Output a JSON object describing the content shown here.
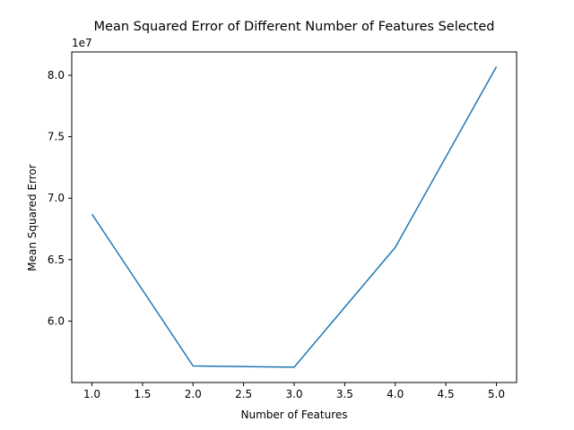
{
  "chart_data": {
    "type": "line",
    "title": "Mean Squared Error of Different Number of Features Selected",
    "xlabel": "Number of Features",
    "ylabel": "Mean Squared Error",
    "y_offset_label": "1e7",
    "x": [
      1,
      2,
      3,
      4,
      5
    ],
    "series": [
      {
        "values": [
          68.7,
          56.35,
          56.25,
          66.0,
          80.7
        ],
        "color": "#1f77b4"
      }
    ],
    "y_unit_multiplier": 10000000,
    "xlim": [
      0.8,
      5.2
    ],
    "ylim": [
      55.0,
      81.9
    ],
    "x_ticks": [
      1.0,
      1.5,
      2.0,
      2.5,
      3.0,
      3.5,
      4.0,
      4.5,
      5.0
    ],
    "x_tick_labels": [
      "1.0",
      "1.5",
      "2.0",
      "2.5",
      "3.0",
      "3.5",
      "4.0",
      "4.5",
      "5.0"
    ],
    "y_ticks": [
      60.0,
      65.0,
      70.0,
      75.0,
      80.0
    ],
    "y_tick_labels": [
      "6.0",
      "6.5",
      "7.0",
      "7.5",
      "8.0"
    ],
    "grid": false,
    "legend": "none"
  }
}
